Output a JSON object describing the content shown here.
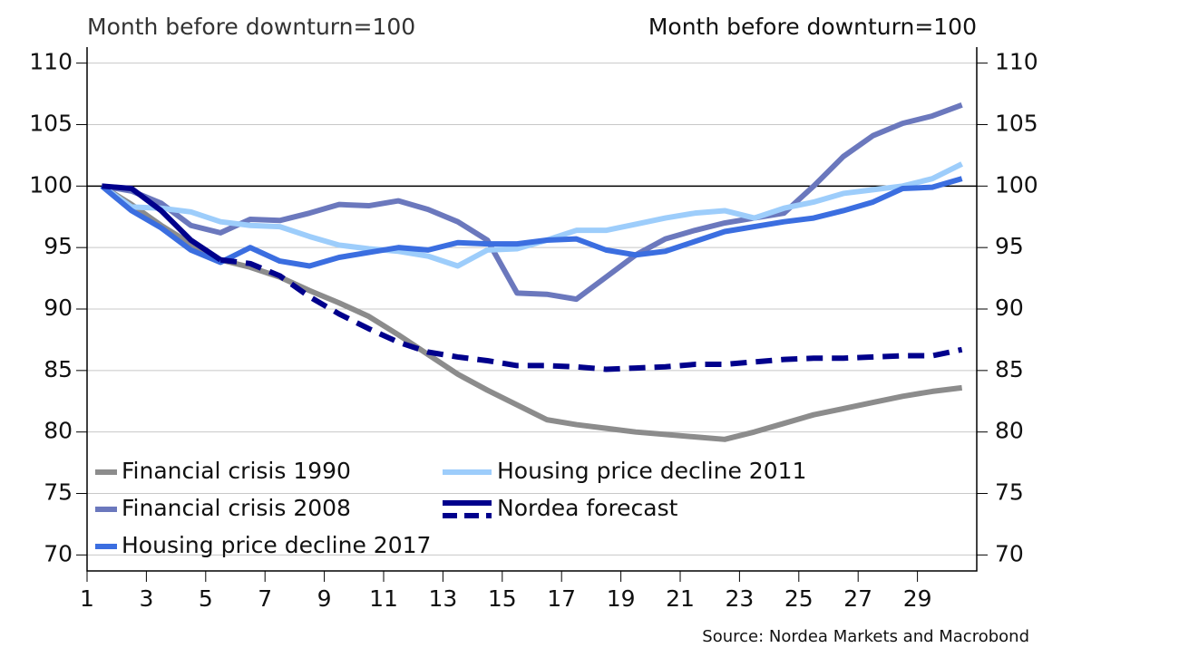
{
  "chart_data": {
    "type": "line",
    "y_label": "Month before downturn=100",
    "y2_label": "Month before downturn=100",
    "source": "Source: Nordea Markets and Macrobond",
    "x": [
      1.5,
      2.5,
      3.5,
      4.5,
      5.5,
      6.5,
      7.5,
      8.5,
      9.5,
      10.5,
      11.5,
      12.5,
      13.5,
      14.5,
      15.5,
      16.5,
      17.5,
      18.5,
      19.5,
      20.5,
      21.5,
      22.5,
      23.5,
      24.5,
      25.5,
      26.5,
      27.5,
      28.5,
      29.5,
      30.5
    ],
    "series": [
      {
        "name": "Financial crisis 1990",
        "color": "#8c8c8c",
        "values": [
          100,
          98.5,
          96.8,
          95.3,
          94.0,
          93.4,
          92.6,
          91.5,
          90.5,
          89.4,
          87.9,
          86.3,
          84.7,
          83.4,
          82.2,
          81.0,
          80.6,
          80.3,
          80.0,
          79.8,
          79.6,
          79.4,
          80.0,
          80.7,
          81.4,
          81.9,
          82.4,
          82.9,
          83.3,
          83.6
        ]
      },
      {
        "name": "Financial crisis 2008",
        "color": "#6b78bd",
        "values": [
          100,
          99.6,
          98.6,
          96.8,
          96.2,
          97.3,
          97.2,
          97.8,
          98.5,
          98.4,
          98.8,
          98.1,
          97.1,
          95.6,
          91.3,
          91.2,
          90.8,
          92.6,
          94.4,
          95.7,
          96.4,
          97.0,
          97.4,
          97.8,
          100.0,
          102.4,
          104.1,
          105.1,
          105.7,
          106.6
        ]
      },
      {
        "name": "Housing price decline 2017",
        "color": "#3b6ee0",
        "values": [
          100,
          98.0,
          96.6,
          94.8,
          93.8,
          95.0,
          93.9,
          93.5,
          94.2,
          94.6,
          95.0,
          94.8,
          95.4,
          95.3,
          95.3,
          95.6,
          95.7,
          94.8,
          94.4,
          94.7,
          95.5,
          96.3,
          96.7,
          97.1,
          97.4,
          98.0,
          98.7,
          99.8,
          99.9,
          100.6
        ]
      },
      {
        "name": "Housing price decline 2011",
        "color": "#9dcdfb",
        "values": [
          100,
          98.3,
          98.2,
          97.9,
          97.1,
          96.8,
          96.7,
          95.9,
          95.2,
          94.9,
          94.7,
          94.3,
          93.5,
          94.8,
          94.9,
          95.6,
          96.4,
          96.4,
          96.9,
          97.4,
          97.8,
          98.0,
          97.4,
          98.2,
          98.7,
          99.4,
          99.7,
          100.0,
          100.6,
          101.8
        ]
      },
      {
        "name": "Nordea forecast",
        "color": "#00008c",
        "dash_from_x": 5.5,
        "values": [
          100,
          99.8,
          98.0,
          95.6,
          94.0,
          93.7,
          92.7,
          91.0,
          89.6,
          88.4,
          87.3,
          86.5,
          86.1,
          85.8,
          85.4,
          85.4,
          85.3,
          85.1,
          85.2,
          85.3,
          85.5,
          85.5,
          85.7,
          85.9,
          86.0,
          86.0,
          86.1,
          86.2,
          86.2,
          86.7
        ]
      }
    ],
    "reference_line": 100,
    "xlim": [
      1,
      31
    ],
    "xticks": [
      1,
      3,
      5,
      7,
      9,
      11,
      13,
      15,
      17,
      19,
      21,
      23,
      25,
      27,
      29
    ],
    "ylim": [
      68.7,
      111.3
    ],
    "yticks": [
      70,
      75,
      80,
      85,
      90,
      95,
      100,
      105,
      110
    ],
    "y2lim": [
      68.7,
      111.3
    ],
    "y2ticks": [
      70,
      75,
      80,
      85,
      90,
      95,
      100,
      105,
      110
    ],
    "grid": true
  }
}
